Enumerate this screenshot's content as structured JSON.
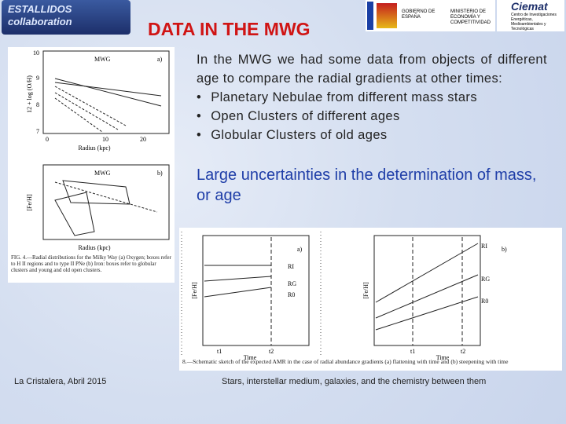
{
  "header": {
    "logo": [
      "ESTALLIDOS",
      "collaboration"
    ],
    "title": "DATA IN THE MWG",
    "gov_logo": [
      "GOBIERNO DE ESPAÑA",
      "MINISTERIO DE ECONOMÍA Y COMPETITIVIDAD"
    ],
    "ciemat_logo": [
      "Ciemat",
      "Centro de Investigaciones Energéticas, Medioambientales y Tecnológicas"
    ]
  },
  "body": {
    "paragraph": "In the MWG we had some data from objects of different age to compare the radial gradients at other times:",
    "bullets": [
      "Planetary Nebulae from different mass stars",
      "Open Clusters of different ages",
      "Globular Clusters of old ages"
    ],
    "highlight": "Large uncertainties in the determination of mass, or age"
  },
  "figure_left": {
    "panel_a": {
      "name": "MWG",
      "letter": "a)",
      "ylabel": "12 + log (O/H)",
      "xlabel": "Radius (kpc)",
      "yticks": [
        "10",
        "9",
        "8",
        "7"
      ],
      "xticks": [
        "0",
        "10",
        "20"
      ]
    },
    "panel_b": {
      "name": "MWG",
      "letter": "b)",
      "ylabel": "[Fe/H]",
      "xlabel": "Radius (kpc)"
    },
    "caption": "FIG. 4.—Radial distributions for the Milky Way (a) Oxygen; boxes refer to H II regions and to type II PNe (b) Iron: boxes refer to globular clusters and young and old open clusters."
  },
  "figure_right": {
    "panel_a": {
      "letter": "a)",
      "curves": [
        "RI",
        "RG",
        "R0"
      ],
      "ylabel": "[Fe/H]",
      "xlabel": "Time",
      "xticks": [
        "t1",
        "t2"
      ]
    },
    "panel_b": {
      "letter": "b)",
      "curves": [
        "RI",
        "RG",
        "R0"
      ],
      "ylabel": "[Fe/H]",
      "xlabel": "Time",
      "xticks": [
        "t1",
        "t2"
      ]
    },
    "caption": "8.—Schematic sketch of the expected AMR in the case of radial abundance gradients (a) flattening with time and (b) steepening with time"
  },
  "footer": {
    "left": "La Cristalera, Abril  2015",
    "center": "Stars, interstellar medium, galaxies, and the chemistry between them"
  }
}
